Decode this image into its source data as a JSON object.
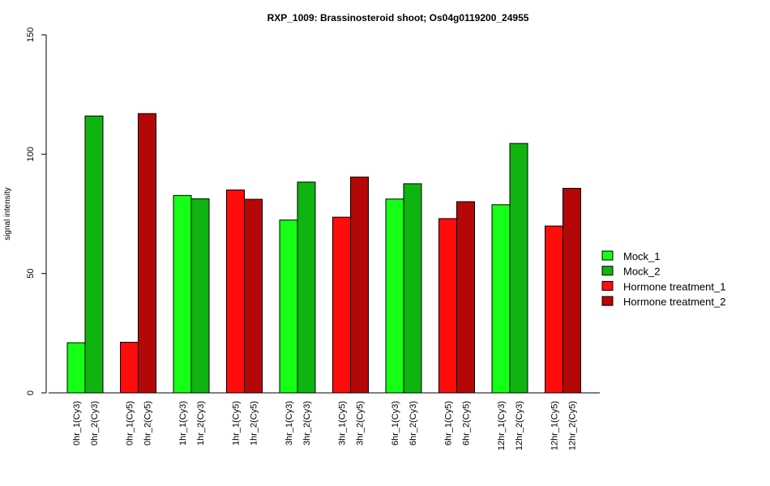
{
  "chart_data": {
    "type": "bar",
    "title": "RXP_1009: Brassinosteroid shoot; Os04g0119200_24955",
    "xlabel": "",
    "ylabel": "signal intensity",
    "ylim": [
      0,
      150
    ],
    "yticks": [
      0,
      50,
      100,
      150
    ],
    "grid": false,
    "legend_position": "right",
    "series": [
      {
        "name": "Mock_1",
        "color": "#16FF16"
      },
      {
        "name": "Mock_2",
        "color": "#10B410"
      },
      {
        "name": "Hormone treatment_1",
        "color": "#FF0C0C"
      },
      {
        "name": "Hormone treatment_2",
        "color": "#B40707"
      }
    ],
    "groups": [
      {
        "bars": [
          {
            "label": "0hr_1(Cy3)",
            "series": 0,
            "value": 21
          },
          {
            "label": "0hr_2(Cy3)",
            "series": 1,
            "value": 116
          }
        ]
      },
      {
        "bars": [
          {
            "label": "0hr_1(Cy5)",
            "series": 2,
            "value": 21.2
          },
          {
            "label": "0hr_2(Cy5)",
            "series": 3,
            "value": 117
          }
        ]
      },
      {
        "bars": [
          {
            "label": "1hr_1(Cy3)",
            "series": 0,
            "value": 82.7
          },
          {
            "label": "1hr_2(Cy3)",
            "series": 1,
            "value": 81.3
          }
        ]
      },
      {
        "bars": [
          {
            "label": "1hr_1(Cy5)",
            "series": 2,
            "value": 85
          },
          {
            "label": "1hr_2(Cy5)",
            "series": 3,
            "value": 81.1
          }
        ]
      },
      {
        "bars": [
          {
            "label": "3hr_1(Cy3)",
            "series": 0,
            "value": 72.4
          },
          {
            "label": "3hr_2(Cy3)",
            "series": 1,
            "value": 88.3
          }
        ]
      },
      {
        "bars": [
          {
            "label": "3hr_1(Cy5)",
            "series": 2,
            "value": 73.6
          },
          {
            "label": "3hr_2(Cy5)",
            "series": 3,
            "value": 90.4
          }
        ]
      },
      {
        "bars": [
          {
            "label": "6hr_1(Cy3)",
            "series": 0,
            "value": 81.2
          },
          {
            "label": "6hr_2(Cy3)",
            "series": 1,
            "value": 87.6
          }
        ]
      },
      {
        "bars": [
          {
            "label": "6hr_1(Cy5)",
            "series": 2,
            "value": 73
          },
          {
            "label": "6hr_2(Cy5)",
            "series": 3,
            "value": 80.1
          }
        ]
      },
      {
        "bars": [
          {
            "label": "12hr_1(Cy3)",
            "series": 0,
            "value": 78.8
          },
          {
            "label": "12hr_2(Cy3)",
            "series": 1,
            "value": 104.5
          }
        ]
      },
      {
        "bars": [
          {
            "label": "12hr_1(Cy5)",
            "series": 2,
            "value": 69.9
          },
          {
            "label": "12hr_2(Cy5)",
            "series": 3,
            "value": 85.7
          }
        ]
      }
    ]
  }
}
